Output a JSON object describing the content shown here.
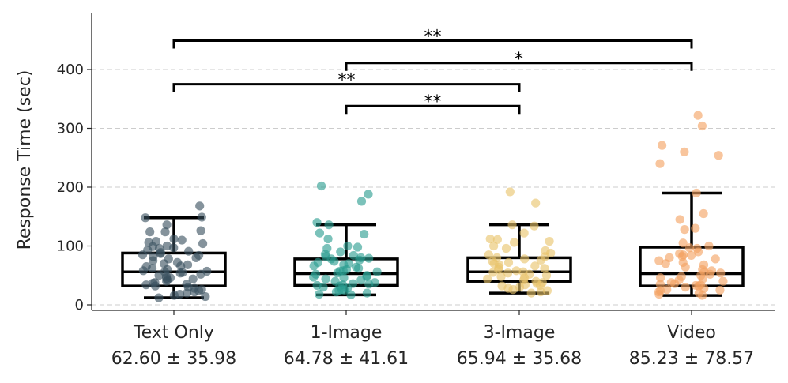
{
  "chart_data": {
    "type": "box",
    "ylabel": "Response Time (sec)",
    "ylim": [
      -10,
      490
    ],
    "yticks": [
      0,
      100,
      200,
      300,
      400
    ],
    "grid": "horizontal-dashed",
    "categories": [
      {
        "name": "Text Only",
        "stat": "62.60 ± 35.98",
        "color": "#3a5060",
        "box": {
          "whisker_low": 12,
          "q1": 32,
          "median": 56,
          "q3": 88,
          "whisker_high": 148
        },
        "points": [
          168,
          149,
          148,
          136,
          126,
          124,
          124,
          112,
          110,
          108,
          106,
          104,
          100,
          99,
          97,
          96,
          93,
          91,
          89,
          87,
          85,
          84,
          82,
          80,
          78,
          75,
          72,
          70,
          68,
          66,
          65,
          62,
          60,
          58,
          57,
          56,
          55,
          54,
          52,
          50,
          48,
          46,
          45,
          44,
          42,
          40,
          38,
          37,
          35,
          34,
          32,
          30,
          28,
          26,
          24,
          22,
          20,
          18,
          16,
          14,
          12
        ]
      },
      {
        "name": "1-Image",
        "stat": "64.78 ± 41.61",
        "color": "#2a9d8f",
        "box": {
          "whisker_low": 17,
          "q1": 33,
          "median": 53,
          "q3": 78,
          "whisker_high": 136
        },
        "points": [
          202,
          188,
          176,
          140,
          136,
          122,
          120,
          112,
          100,
          98,
          96,
          90,
          86,
          84,
          82,
          80,
          79,
          78,
          76,
          74,
          72,
          70,
          68,
          66,
          64,
          62,
          60,
          58,
          57,
          56,
          54,
          52,
          50,
          48,
          47,
          46,
          44,
          42,
          40,
          38,
          36,
          35,
          34,
          33,
          32,
          30,
          28,
          26,
          25,
          24,
          22,
          20,
          18,
          17
        ]
      },
      {
        "name": "3-Image",
        "stat": "65.94 ± 35.68",
        "color": "#e9c46a",
        "box": {
          "whisker_low": 20,
          "q1": 40,
          "median": 56,
          "q3": 80,
          "whisker_high": 136
        },
        "points": [
          192,
          173,
          136,
          134,
          122,
          112,
          111,
          108,
          106,
          100,
          96,
          92,
          88,
          85,
          82,
          80,
          78,
          76,
          74,
          72,
          70,
          68,
          66,
          64,
          62,
          60,
          58,
          56,
          55,
          54,
          52,
          50,
          48,
          46,
          44,
          42,
          40,
          38,
          36,
          34,
          33,
          32,
          30,
          28,
          26,
          24,
          22,
          20
        ]
      },
      {
        "name": "Video",
        "stat": "85.23 ± 78.57",
        "color": "#f4a261",
        "box": {
          "whisker_low": 16,
          "q1": 32,
          "median": 53,
          "q3": 98,
          "whisker_high": 190
        },
        "points": [
          322,
          304,
          271,
          260,
          254,
          240,
          190,
          155,
          145,
          130,
          128,
          105,
          100,
          97,
          96,
          90,
          87,
          85,
          84,
          82,
          80,
          78,
          75,
          72,
          70,
          68,
          64,
          60,
          58,
          56,
          54,
          52,
          50,
          48,
          46,
          44,
          42,
          40,
          38,
          36,
          35,
          34,
          33,
          32,
          30,
          28,
          26,
          25,
          24,
          22,
          20,
          18,
          16
        ]
      }
    ],
    "significance": [
      {
        "from": 0,
        "to": 3,
        "y": 449,
        "label": "**"
      },
      {
        "from": 1,
        "to": 3,
        "y": 411,
        "label": "*"
      },
      {
        "from": 0,
        "to": 2,
        "y": 375,
        "label": "**"
      },
      {
        "from": 1,
        "to": 2,
        "y": 338,
        "label": "**"
      }
    ]
  }
}
